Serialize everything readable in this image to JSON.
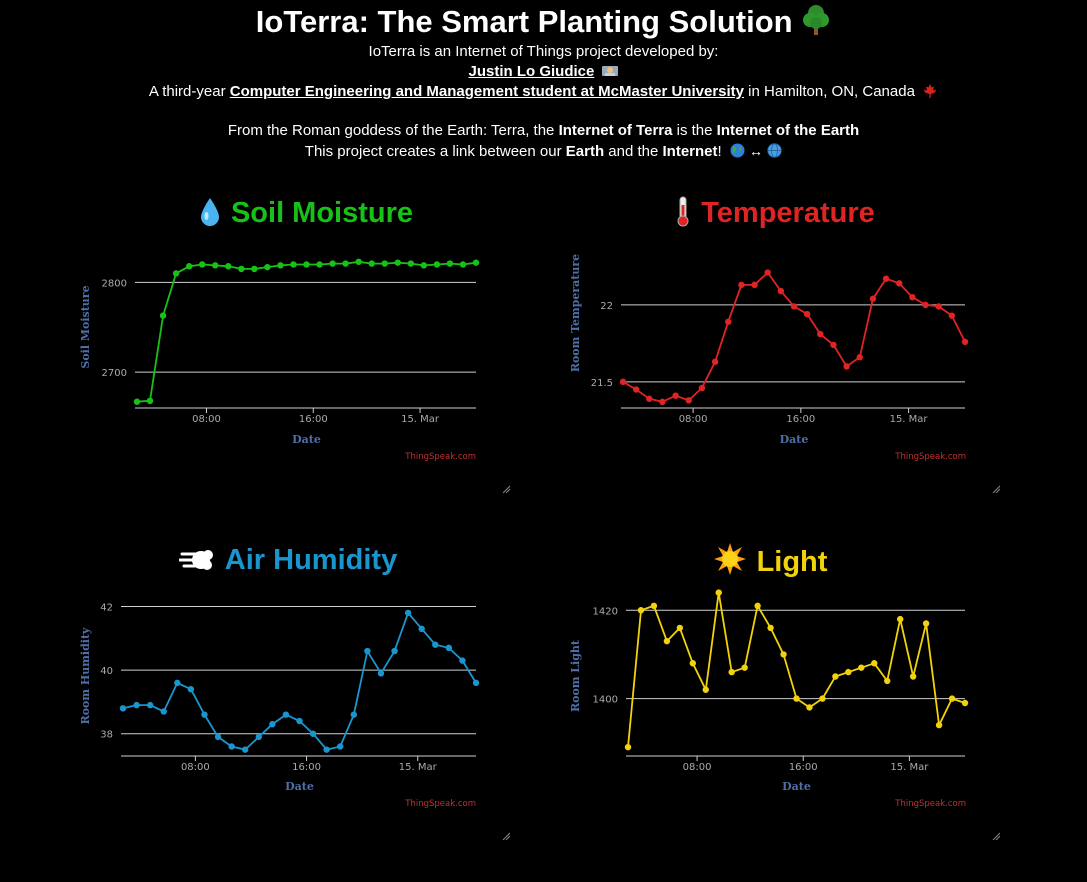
{
  "header": {
    "title": "IoTerra: The Smart Planting Solution",
    "intro": "IoTerra is an Internet of Things project developed by:",
    "author": "Justin Lo Giudice",
    "line3_pre": "A third-year ",
    "line3_link": "Computer Engineering and Management student at McMaster University",
    "line3_post": " in Hamilton, ON, Canada",
    "line4_a": "From the Roman goddess of the Earth: Terra, the ",
    "line4_b": "Internet of Terra",
    "line4_c": " is the ",
    "line4_d": "Internet of the Earth",
    "line5_a": "This project creates a link between our ",
    "line5_b": "Earth",
    "line5_c": " and the ",
    "line5_d": "Internet",
    "line5_e": "!"
  },
  "panels": [
    {
      "title": "Soil Moisture",
      "icon": "droplet-icon",
      "color": "#17c217"
    },
    {
      "title": "Temperature",
      "icon": "thermometer-icon",
      "color": "#e02424"
    },
    {
      "title": "Air Humidity",
      "icon": "wind-icon",
      "color": "#1a96cf"
    },
    {
      "title": "Light",
      "icon": "sun-icon",
      "color": "#f2d20a"
    }
  ],
  "credit": "ThingSpeak.com",
  "chart_data": [
    {
      "type": "line",
      "title": "",
      "xlabel": "Date",
      "ylabel": "Soil Moisture",
      "x_ticks": [
        "08:00",
        "16:00",
        "15. Mar"
      ],
      "y_ticks": [
        2700,
        2800
      ],
      "ylim": [
        2660,
        2835
      ],
      "color": "#17c217",
      "series": [
        {
          "values": [
            2667,
            2668,
            2763,
            2810,
            2818,
            2820,
            2819,
            2818,
            2815,
            2815,
            2817,
            2819,
            2820,
            2820,
            2820,
            2821,
            2821,
            2823,
            2821,
            2821,
            2822,
            2821,
            2819,
            2820,
            2821,
            2820,
            2822
          ]
        }
      ]
    },
    {
      "type": "line",
      "title": "",
      "xlabel": "Date",
      "ylabel": "Room Temperature",
      "x_ticks": [
        "08:00",
        "16:00",
        "15. Mar"
      ],
      "y_ticks": [
        21.5,
        22
      ],
      "ylim": [
        21.33,
        22.35
      ],
      "color": "#e02424",
      "series": [
        {
          "values": [
            21.5,
            21.45,
            21.39,
            21.37,
            21.41,
            21.38,
            21.46,
            21.63,
            21.89,
            22.13,
            22.13,
            22.21,
            22.09,
            21.99,
            21.94,
            21.81,
            21.74,
            21.6,
            21.66,
            22.04,
            22.17,
            22.14,
            22.05,
            22.0,
            21.99,
            21.93,
            21.76
          ]
        }
      ]
    },
    {
      "type": "line",
      "title": "",
      "xlabel": "Date",
      "ylabel": "Room Humidity",
      "x_ticks": [
        "08:00",
        "16:00",
        "15. Mar"
      ],
      "y_ticks": [
        38,
        40,
        42
      ],
      "ylim": [
        37.3,
        42.3
      ],
      "color": "#1a96cf",
      "series": [
        {
          "values": [
            38.8,
            38.9,
            38.9,
            38.7,
            39.6,
            39.4,
            38.6,
            37.9,
            37.6,
            37.5,
            37.9,
            38.3,
            38.6,
            38.4,
            38.0,
            37.5,
            37.6,
            38.6,
            40.6,
            39.9,
            40.6,
            41.8,
            41.3,
            40.8,
            40.7,
            40.3,
            39.6
          ]
        }
      ]
    },
    {
      "type": "line",
      "title": "",
      "xlabel": "Date",
      "ylabel": "Room Light",
      "x_ticks": [
        "08:00",
        "16:00",
        "15. Mar"
      ],
      "y_ticks": [
        1400,
        1420
      ],
      "ylim": [
        1387,
        1423
      ],
      "color": "#f2d20a",
      "series": [
        {
          "values": [
            1389,
            1420,
            1421,
            1413,
            1416,
            1408,
            1402,
            1424,
            1406,
            1407,
            1421,
            1416,
            1410,
            1400,
            1398,
            1400,
            1405,
            1406,
            1407,
            1408,
            1404,
            1418,
            1405,
            1417,
            1394,
            1400,
            1399
          ]
        }
      ]
    }
  ]
}
